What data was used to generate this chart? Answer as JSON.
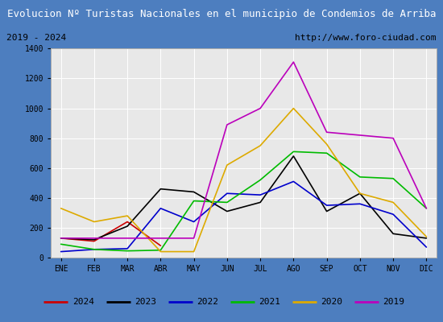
{
  "title": "Evolucion Nº Turistas Nacionales en el municipio de Condemios de Arriba",
  "subtitle_left": "2019 - 2024",
  "subtitle_right": "http://www.foro-ciudad.com",
  "title_bg_color": "#4d7ebf",
  "title_fg_color": "#ffffff",
  "subtitle_bg_color": "#e8e8e8",
  "subtitle_fg_color": "#000000",
  "plot_bg_color": "#e8e8e8",
  "months": [
    "ENE",
    "FEB",
    "MAR",
    "ABR",
    "MAY",
    "JUN",
    "JUL",
    "AGO",
    "SEP",
    "OCT",
    "NOV",
    "DIC"
  ],
  "series": {
    "2024": {
      "color": "#cc0000",
      "data": [
        130,
        110,
        240,
        80,
        null,
        null,
        null,
        null,
        null,
        null,
        null,
        null
      ]
    },
    "2023": {
      "color": "#000000",
      "data": [
        130,
        120,
        210,
        460,
        440,
        310,
        370,
        680,
        310,
        430,
        160,
        130
      ]
    },
    "2022": {
      "color": "#0000cc",
      "data": [
        40,
        55,
        60,
        330,
        240,
        430,
        420,
        510,
        350,
        360,
        290,
        70
      ]
    },
    "2021": {
      "color": "#00bb00",
      "data": [
        90,
        55,
        45,
        50,
        380,
        370,
        520,
        710,
        700,
        540,
        530,
        330
      ]
    },
    "2020": {
      "color": "#ddaa00",
      "data": [
        330,
        240,
        280,
        40,
        40,
        620,
        750,
        1000,
        760,
        430,
        370,
        140
      ]
    },
    "2019": {
      "color": "#bb00bb",
      "data": [
        130,
        130,
        130,
        130,
        130,
        890,
        1000,
        1310,
        840,
        820,
        800,
        330
      ]
    }
  },
  "ylim": [
    0,
    1400
  ],
  "yticks": [
    0,
    200,
    400,
    600,
    800,
    1000,
    1200,
    1400
  ],
  "legend_order": [
    "2024",
    "2023",
    "2022",
    "2021",
    "2020",
    "2019"
  ],
  "border_color": "#4d7ebf",
  "grid_color": "#ffffff",
  "tick_color": "#000000"
}
